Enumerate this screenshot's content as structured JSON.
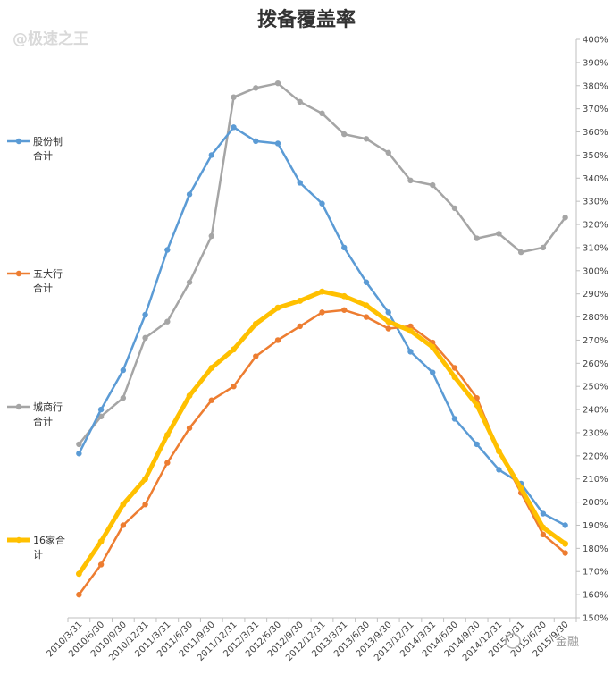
{
  "chart_data": {
    "type": "line",
    "title": "拨备覆盖率",
    "ylim": [
      150,
      400
    ],
    "ytick_step": 10,
    "y_axis_side": "right",
    "y_unit": "%",
    "grid": false,
    "legend_position": "left",
    "categories": [
      "2010/3/31",
      "2010/6/30",
      "2010/9/30",
      "2010/12/31",
      "2011/3/31",
      "2011/6/30",
      "2011/9/30",
      "2011/12/31",
      "2012/3/31",
      "2012/6/30",
      "2012/9/30",
      "2012/12/31",
      "2013/3/31",
      "2013/6/30",
      "2013/9/30",
      "2013/12/31",
      "2014/3/31",
      "2014/6/30",
      "2014/9/30",
      "2014/12/31",
      "2015/3/31",
      "2015/6/30",
      "2015/9/30"
    ],
    "series": [
      {
        "name": "股份制合计",
        "legend_lines": [
          "股份制",
          "合计"
        ],
        "color": "#5b9bd5",
        "width": 2.5,
        "values": [
          221,
          240,
          257,
          281,
          309,
          333,
          350,
          362,
          356,
          355,
          338,
          329,
          310,
          295,
          282,
          265,
          256,
          236,
          225,
          214,
          208,
          195,
          190
        ]
      },
      {
        "name": "城商行合计",
        "legend_lines": [
          "城商行",
          "合计"
        ],
        "color": "#a5a5a5",
        "width": 2.5,
        "values": [
          225,
          237,
          245,
          271,
          278,
          295,
          315,
          375,
          379,
          381,
          373,
          368,
          359,
          357,
          351,
          339,
          337,
          327,
          314,
          316,
          308,
          310,
          323
        ]
      },
      {
        "name": "五大行合计",
        "legend_lines": [
          "五大行",
          "合计"
        ],
        "color": "#ed7d31",
        "width": 2.5,
        "values": [
          160,
          173,
          190,
          199,
          217,
          232,
          244,
          250,
          263,
          270,
          276,
          282,
          283,
          280,
          275,
          276,
          269,
          258,
          245,
          222,
          204,
          186,
          178
        ]
      },
      {
        "name": "16家合计",
        "legend_lines": [
          "16家合",
          "计"
        ],
        "color": "#ffc000",
        "width": 5,
        "values": [
          169,
          183,
          199,
          210,
          229,
          246,
          258,
          266,
          277,
          284,
          287,
          291,
          289,
          285,
          278,
          274,
          267,
          254,
          242,
          222,
          206,
          189,
          182
        ]
      }
    ]
  },
  "watermarks": [
    "@极速之王",
    "金融"
  ]
}
